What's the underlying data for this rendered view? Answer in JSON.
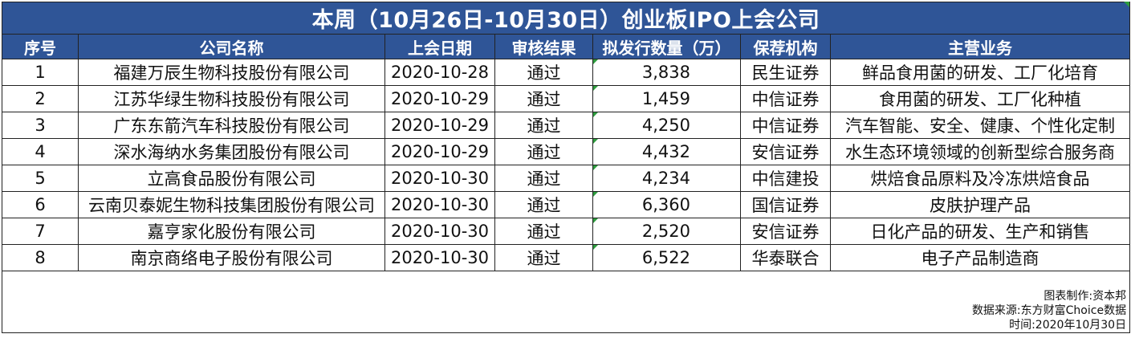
{
  "title": "本周（10月26日-10月30日）创业板IPO上会公司",
  "headers": {
    "seq": "序号",
    "company": "公司名称",
    "date": "上会日期",
    "result": "审核结果",
    "shares": "拟发行数量（万）",
    "sponsor": "保荐机构",
    "business": "主营业务"
  },
  "rows": [
    {
      "seq": "1",
      "company": "福建万辰生物科技股份有限公司",
      "date": "2020-10-28",
      "result": "通过",
      "shares": "3,838",
      "sponsor": "民生证券",
      "business": "鲜品食用菌的研发、工厂化培育"
    },
    {
      "seq": "2",
      "company": "江苏华绿生物科技股份有限公司",
      "date": "2020-10-29",
      "result": "通过",
      "shares": "1,459",
      "sponsor": "中信证券",
      "business": "食用菌的研发、工厂化种植"
    },
    {
      "seq": "3",
      "company": "广东东箭汽车科技股份有限公司",
      "date": "2020-10-29",
      "result": "通过",
      "shares": "4,250",
      "sponsor": "中信证券",
      "business": "汽车智能、安全、健康、个性化定制"
    },
    {
      "seq": "4",
      "company": "深水海纳水务集团股份有限公司",
      "date": "2020-10-29",
      "result": "通过",
      "shares": "4,432",
      "sponsor": "安信证券",
      "business": "水生态环境领域的创新型综合服务商"
    },
    {
      "seq": "5",
      "company": "立高食品股份有限公司",
      "date": "2020-10-30",
      "result": "通过",
      "shares": "4,234",
      "sponsor": "中信建投",
      "business": "烘焙食品原料及冷冻烘焙食品"
    },
    {
      "seq": "6",
      "company": "云南贝泰妮生物科技集团股份有限公司",
      "date": "2020-10-30",
      "result": "通过",
      "shares": "6,360",
      "sponsor": "国信证券",
      "business": "皮肤护理产品"
    },
    {
      "seq": "7",
      "company": "嘉亨家化股份有限公司",
      "date": "2020-10-30",
      "result": "通过",
      "shares": "2,520",
      "sponsor": "安信证券",
      "business": "日化产品的研发、生产和销售"
    },
    {
      "seq": "8",
      "company": "南京商络电子股份有限公司",
      "date": "2020-10-30",
      "result": "通过",
      "shares": "6,522",
      "sponsor": "华泰联合",
      "business": "电子产品制造商"
    }
  ],
  "footer": {
    "maker": "图表制作:资本邦",
    "source": "数据来源:东方财富Choice数据",
    "time": "时间:2020年10月30日"
  },
  "colors": {
    "header_bg": "#2f5597",
    "header_text": "#ffffff",
    "border": "#222222",
    "cell_marker": "#2e9c3e"
  }
}
